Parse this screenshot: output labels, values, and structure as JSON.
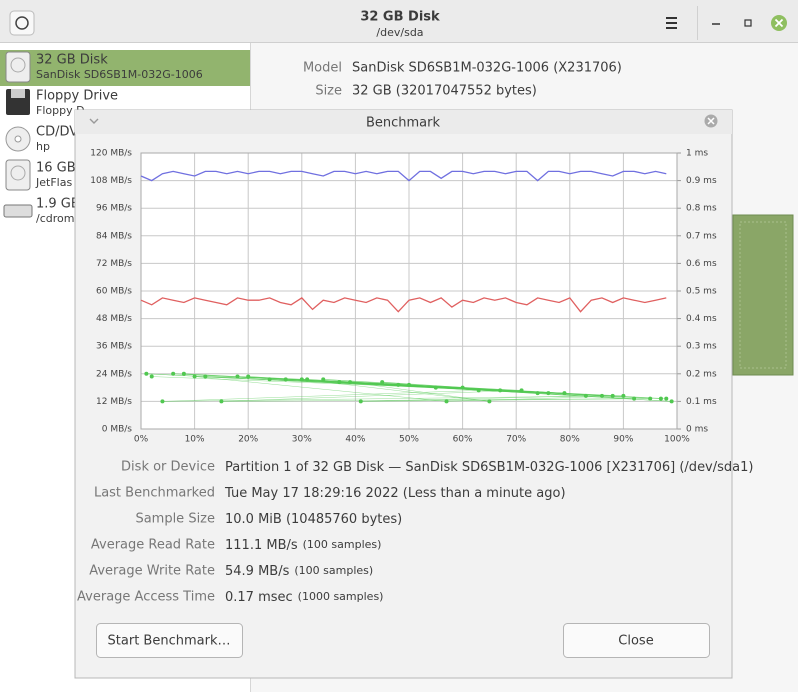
{
  "header": {
    "title": "32 GB Disk",
    "subtitle": "/dev/sda"
  },
  "sidebar": [
    {
      "name": "32 GB Disk",
      "detail": "SanDisk SD6SB1M-032G-1006"
    },
    {
      "name": "Floppy Drive",
      "detail": "Floppy D"
    },
    {
      "name": "CD/DV",
      "detail": "hp"
    },
    {
      "name": "16 GB",
      "detail": "JetFlas"
    },
    {
      "name": "1.9 GB",
      "detail": "/cdrom"
    }
  ],
  "details": [
    {
      "label": "Model",
      "value": "SanDisk SD6SB1M-032G-1006 (X231706)"
    },
    {
      "label": "Size",
      "value": "32 GB (32017047552 bytes)"
    }
  ],
  "dialog": {
    "title": "Benchmark",
    "rows": [
      {
        "label": "Disk or Device",
        "value": "Partition 1 of 32 GB Disk — SanDisk SD6SB1M-032G-1006 [X231706] (/dev/sda1)"
      },
      {
        "label": "Last Benchmarked",
        "value": "Tue May 17 18:29:16 2022 (Less than a minute ago)"
      },
      {
        "label": "Sample Size",
        "value": "10.0 MiB (10485760 bytes)"
      },
      {
        "label": "Average Read Rate",
        "value": "111.1 MB/s",
        "note": "(100 samples)"
      },
      {
        "label": "Average Write Rate",
        "value": "54.9 MB/s",
        "note": "(100 samples)"
      },
      {
        "label": "Average Access Time",
        "value": "0.17 msec",
        "note": "(1000 samples)"
      }
    ],
    "buttons": [
      "Start Benchmark…",
      "Close"
    ]
  },
  "chart_data": {
    "type": "line",
    "xlim": [
      0,
      100
    ],
    "xticks": [
      {
        "value": 0,
        "label": "0%"
      },
      {
        "value": 10,
        "label": "10%"
      },
      {
        "value": 20,
        "label": "20%"
      },
      {
        "value": 30,
        "label": "30%"
      },
      {
        "value": 40,
        "label": "40%"
      },
      {
        "value": 50,
        "label": "50%"
      },
      {
        "value": 60,
        "label": "60%"
      },
      {
        "value": 70,
        "label": "70%"
      },
      {
        "value": 80,
        "label": "80%"
      },
      {
        "value": 90,
        "label": "90%"
      },
      {
        "value": 100,
        "label": "100%"
      }
    ],
    "ylim": [
      0,
      120
    ],
    "yticks": [
      {
        "value": 0,
        "label": "0 MB/s"
      },
      {
        "value": 12,
        "label": "12 MB/s"
      },
      {
        "value": 24,
        "label": "24 MB/s"
      },
      {
        "value": 36,
        "label": "36 MB/s"
      },
      {
        "value": 48,
        "label": "48 MB/s"
      },
      {
        "value": 60,
        "label": "60 MB/s"
      },
      {
        "value": 72,
        "label": "72 MB/s"
      },
      {
        "value": 84,
        "label": "84 MB/s"
      },
      {
        "value": 96,
        "label": "96 MB/s"
      },
      {
        "value": 108,
        "label": "108 MB/s"
      },
      {
        "value": 120,
        "label": "120 MB/s"
      }
    ],
    "y2lim": [
      0,
      1
    ],
    "y2ticks": [
      {
        "value": 0,
        "label": "0 ms"
      },
      {
        "value": 0.1,
        "label": "0.1 ms"
      },
      {
        "value": 0.2,
        "label": "0.2 ms"
      },
      {
        "value": 0.3,
        "label": "0.3 ms"
      },
      {
        "value": 0.4,
        "label": "0.4 ms"
      },
      {
        "value": 0.5,
        "label": "0.5 ms"
      },
      {
        "value": 0.6,
        "label": "0.6 ms"
      },
      {
        "value": 0.7,
        "label": "0.7 ms"
      },
      {
        "value": 0.8,
        "label": "0.8 ms"
      },
      {
        "value": 0.9,
        "label": "0.9 ms"
      },
      {
        "value": 1,
        "label": "1 ms"
      }
    ],
    "grid": true,
    "series": [
      {
        "color": "#7070e0",
        "x": [
          0,
          2,
          4,
          6,
          8,
          10,
          12,
          14,
          16,
          18,
          20,
          22,
          24,
          26,
          28,
          30,
          32,
          34,
          36,
          38,
          40,
          42,
          44,
          46,
          48,
          50,
          52,
          54,
          56,
          58,
          60,
          62,
          64,
          66,
          68,
          70,
          72,
          74,
          76,
          78,
          80,
          82,
          84,
          86,
          88,
          90,
          92,
          94,
          96,
          98
        ],
        "values": [
          110,
          108,
          111,
          112,
          111,
          110,
          112,
          112,
          111,
          112,
          111,
          112,
          112,
          111,
          112,
          112,
          111,
          110,
          112,
          112,
          111,
          112,
          111,
          112,
          112,
          108,
          112,
          112,
          109,
          112,
          112,
          111,
          112,
          112,
          111,
          112,
          112,
          108,
          112,
          112,
          111,
          112,
          112,
          111,
          110,
          112,
          112,
          111,
          112,
          111
        ]
      },
      {
        "color": "#e06060",
        "x": [
          0,
          2,
          4,
          6,
          8,
          10,
          12,
          14,
          16,
          18,
          20,
          22,
          24,
          26,
          28,
          30,
          32,
          34,
          36,
          38,
          40,
          42,
          44,
          46,
          48,
          50,
          52,
          54,
          56,
          58,
          60,
          62,
          64,
          66,
          68,
          70,
          72,
          74,
          76,
          78,
          80,
          82,
          84,
          86,
          88,
          90,
          92,
          94,
          96,
          98
        ],
        "values": [
          56,
          54,
          57,
          56,
          55,
          57,
          56,
          55,
          54,
          57,
          56,
          56,
          57,
          55,
          54,
          57,
          52,
          56,
          55,
          57,
          56,
          55,
          57,
          56,
          51,
          56,
          57,
          55,
          57,
          53,
          56,
          55,
          57,
          56,
          57,
          55,
          54,
          57,
          56,
          55,
          57,
          51,
          56,
          57,
          55,
          57,
          56,
          55,
          56,
          57
        ]
      },
      {
        "type": "scatter",
        "axis": "y2",
        "color": "#50c850",
        "x": [
          2,
          55,
          8,
          97,
          31,
          12,
          76,
          45,
          63,
          4,
          88,
          20,
          99,
          37,
          50,
          71,
          15,
          92,
          27,
          60,
          6,
          83,
          41,
          95,
          18,
          67,
          34,
          79,
          10,
          57,
          90,
          24,
          48,
          74,
          1,
          86,
          39,
          65,
          30,
          98
        ],
        "values": [
          0.19,
          0.15,
          0.2,
          0.11,
          0.18,
          0.19,
          0.13,
          0.17,
          0.14,
          0.1,
          0.12,
          0.19,
          0.1,
          0.17,
          0.16,
          0.14,
          0.1,
          0.11,
          0.18,
          0.15,
          0.2,
          0.12,
          0.1,
          0.11,
          0.19,
          0.14,
          0.18,
          0.13,
          0.19,
          0.1,
          0.12,
          0.18,
          0.16,
          0.13,
          0.2,
          0.12,
          0.17,
          0.1,
          0.18,
          0.11
        ]
      }
    ]
  }
}
